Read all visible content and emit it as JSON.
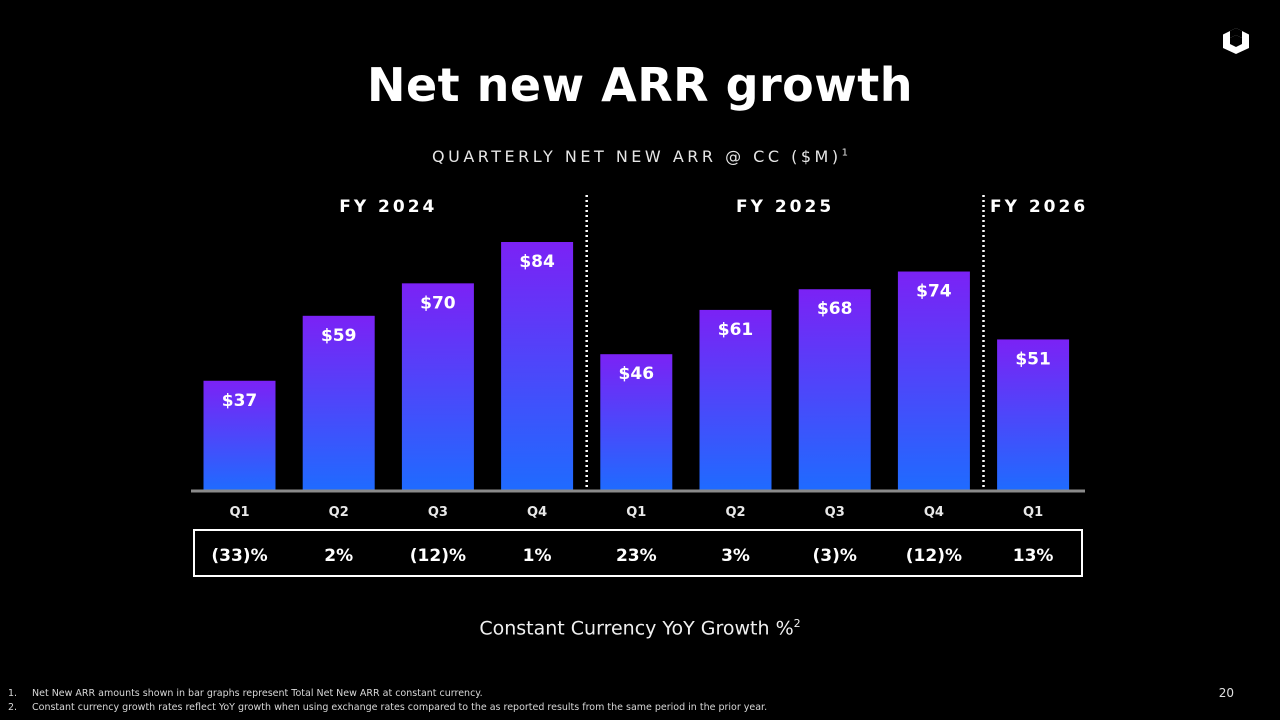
{
  "title": "Net new ARR growth",
  "subtitle": "QUARTERLY NET NEW ARR @ CC ($M)",
  "subtitle_footnote": "1",
  "growth_caption": "Constant Currency YoY Growth %",
  "growth_caption_footnote": "2",
  "footnotes": [
    {
      "num": "1.",
      "text": "Net New ARR amounts shown in bar graphs represent Total Net New ARR at constant currency."
    },
    {
      "num": "2.",
      "text": "Constant currency growth rates reflect YoY growth when using exchange rates compared to the as reported results from the same period in the prior year."
    }
  ],
  "page_number": "20",
  "colors": {
    "bar_top": "#7b22f5",
    "bar_bottom": "#1f6bff",
    "axis": "#8a8a8a",
    "background": "#000000"
  },
  "icons": {
    "logo": "cube-logo-icon"
  },
  "chart_data": {
    "type": "bar",
    "title": "QUARTERLY NET NEW ARR @ CC ($M)",
    "categories": [
      "Q1",
      "Q2",
      "Q3",
      "Q4",
      "Q1",
      "Q2",
      "Q3",
      "Q4",
      "Q1"
    ],
    "values": [
      37,
      59,
      70,
      84,
      46,
      61,
      68,
      74,
      51
    ],
    "value_labels": [
      "$37",
      "$59",
      "$70",
      "$84",
      "$46",
      "$61",
      "$68",
      "$74",
      "$51"
    ],
    "fiscal_years": [
      {
        "label": "FY 2024",
        "quarters": 4
      },
      {
        "label": "FY 2025",
        "quarters": 4
      },
      {
        "label": "FY 2026",
        "quarters": 1
      }
    ],
    "growth_labels": [
      "(33)%",
      "2%",
      "(12)%",
      "1%",
      "23%",
      "3%",
      "(3)%",
      "(12)%",
      "13%"
    ],
    "growth_values": [
      -33,
      2,
      -12,
      1,
      23,
      3,
      -3,
      -12,
      13
    ],
    "ylim": [
      0,
      84
    ],
    "grid": false,
    "legend": "none"
  }
}
